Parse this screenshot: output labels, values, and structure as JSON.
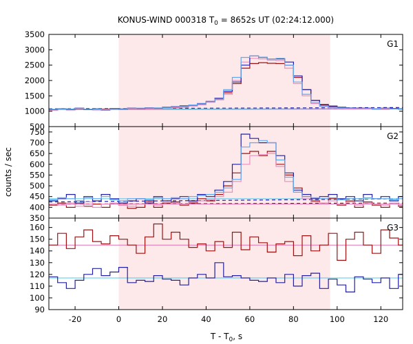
{
  "chart_data": {
    "type": "line",
    "title_main": "KONUS-WIND 000318 T",
    "title_sub": "0",
    "title_rest": " = 8652s UT (02:24:12.000)",
    "xlabel_main": "T - T",
    "xlabel_sub": "0",
    "xlabel_rest": ", s",
    "ylabel": "counts / sec",
    "xlim": [
      -32,
      130
    ],
    "xticks": [
      -20,
      0,
      20,
      40,
      60,
      80,
      100,
      120
    ],
    "shade_range": [
      0,
      96.8
    ],
    "grid": false,
    "colors": {
      "shade": "#fde8ea",
      "dark_red": "#a01010",
      "pink": "#e890c0",
      "dark_blue": "#2020a0",
      "light_blue": "#60a8f0",
      "fit_pink": "#e070b0",
      "fit_cyan": "#50c8e8"
    },
    "panels": [
      {
        "label": "G1",
        "ylim": [
          500,
          3500
        ],
        "yticks": [
          500,
          1000,
          1500,
          2000,
          2500,
          3000,
          3500
        ],
        "series": [
          {
            "color_key": "dark_red",
            "step": 4,
            "x0": -32,
            "values": [
              1040,
              1060,
              1050,
              1060,
              1060,
              1050,
              1070,
              1060,
              1060,
              1070,
              1080,
              1080,
              1090,
              1100,
              1120,
              1140,
              1180,
              1220,
              1300,
              1380,
              1600,
              1900,
              2400,
              2550,
              2580,
              2560,
              2550,
              2500,
              2100,
              1700,
              1350,
              1200,
              1150,
              1120,
              1100,
              1100,
              1090,
              1080,
              1070,
              1080,
              1070
            ]
          },
          {
            "color_key": "pink",
            "step": 4,
            "x0": -32,
            "values": [
              1030,
              1050,
              1040,
              1050,
              1050,
              1040,
              1060,
              1050,
              1050,
              1060,
              1070,
              1070,
              1080,
              1090,
              1110,
              1130,
              1170,
              1210,
              1290,
              1370,
              1550,
              2000,
              2600,
              2720,
              2700,
              2660,
              2650,
              2400,
              1900,
              1500,
              1250,
              1150,
              1110,
              1090,
              1080,
              1080,
              1070,
              1060,
              1060,
              1070,
              1060
            ]
          },
          {
            "color_key": "dark_blue",
            "step": 4,
            "x0": -32,
            "values": [
              1050,
              1080,
              1060,
              1100,
              1050,
              1080,
              1040,
              1090,
              1070,
              1100,
              1090,
              1110,
              1100,
              1130,
              1150,
              1180,
              1200,
              1250,
              1320,
              1420,
              1650,
              1950,
              2500,
              2800,
              2750,
              2700,
              2700,
              2600,
              2150,
              1700,
              1350,
              1220,
              1170,
              1130,
              1110,
              1100,
              1100,
              1080,
              1100,
              1090,
              1070
            ]
          },
          {
            "color_key": "light_blue",
            "step": 4,
            "x0": -32,
            "values": [
              1060,
              1070,
              1070,
              1090,
              1060,
              1070,
              1050,
              1080,
              1080,
              1090,
              1100,
              1100,
              1110,
              1120,
              1140,
              1170,
              1200,
              1240,
              1310,
              1400,
              1700,
              2100,
              2750,
              2800,
              2760,
              2700,
              2720,
              2500,
              1950,
              1550,
              1280,
              1170,
              1130,
              1110,
              1100,
              1090,
              1090,
              1080,
              1090,
              1080,
              1070
            ]
          }
        ],
        "fits": [
          {
            "color_key": "dark_red",
            "dashed": true,
            "y_start": 1060,
            "y_end": 1080
          },
          {
            "color_key": "dark_blue",
            "dashed": true,
            "y_start": 1080,
            "y_end": 1120
          },
          {
            "color_key": "fit_pink",
            "dashed": false,
            "y_start": 1050,
            "y_end": 1070
          },
          {
            "color_key": "fit_cyan",
            "dashed": false,
            "y_start": 1065,
            "y_end": 1090
          }
        ]
      },
      {
        "label": "G2",
        "ylim": [
          350,
          775
        ],
        "yticks": [
          350,
          400,
          450,
          500,
          550,
          600,
          650,
          700,
          750
        ],
        "series": [
          {
            "color_key": "dark_red",
            "step": 4,
            "x0": -32,
            "values": [
              410,
              420,
              400,
              430,
              405,
              415,
              400,
              420,
              410,
              395,
              400,
              430,
              400,
              420,
              425,
              410,
              420,
              440,
              430,
              460,
              500,
              560,
              650,
              660,
              640,
              660,
              600,
              550,
              490,
              450,
              430,
              420,
              440,
              410,
              430,
              400,
              425,
              410,
              400,
              420,
              405
            ]
          },
          {
            "color_key": "pink",
            "step": 4,
            "x0": -32,
            "values": [
              415,
              410,
              420,
              405,
              425,
              400,
              415,
              420,
              410,
              405,
              415,
              425,
              410,
              415,
              420,
              415,
              425,
              430,
              435,
              450,
              470,
              520,
              600,
              640,
              645,
              650,
              590,
              520,
              470,
              440,
              425,
              420,
              430,
              415,
              425,
              410,
              420,
              415,
              410,
              420,
              410
            ]
          },
          {
            "color_key": "dark_blue",
            "step": 4,
            "x0": -32,
            "values": [
              430,
              440,
              460,
              420,
              450,
              430,
              460,
              440,
              420,
              430,
              440,
              420,
              450,
              430,
              440,
              450,
              430,
              460,
              450,
              480,
              520,
              600,
              740,
              720,
              700,
              700,
              640,
              560,
              480,
              460,
              440,
              450,
              460,
              440,
              450,
              430,
              460,
              440,
              450,
              430,
              450
            ]
          },
          {
            "color_key": "light_blue",
            "step": 4,
            "x0": -32,
            "values": [
              435,
              445,
              440,
              430,
              445,
              440,
              450,
              435,
              430,
              440,
              440,
              435,
              445,
              440,
              445,
              440,
              450,
              455,
              460,
              470,
              490,
              530,
              680,
              700,
              710,
              700,
              620,
              540,
              470,
              450,
              445,
              440,
              445,
              435,
              440,
              440,
              445,
              440,
              440,
              435,
              440
            ]
          }
        ],
        "fits": [
          {
            "color_key": "dark_red",
            "dashed": true,
            "y_start": 415,
            "y_end": 420
          },
          {
            "color_key": "dark_blue",
            "dashed": true,
            "y_start": 425,
            "y_end": 440
          },
          {
            "color_key": "fit_pink",
            "dashed": false,
            "y_start": 415,
            "y_end": 415
          },
          {
            "color_key": "fit_cyan",
            "dashed": false,
            "y_start": 440,
            "y_end": 440
          }
        ]
      },
      {
        "label": "G3",
        "ylim": [
          90,
          168
        ],
        "yticks": [
          90,
          100,
          110,
          120,
          130,
          140,
          150,
          160
        ],
        "series": [
          {
            "color_key": "dark_red",
            "step": 4,
            "x0": -32,
            "values": [
              145,
              155,
              142,
              152,
              158,
              148,
              146,
              153,
              150,
              145,
              138,
              152,
              163,
              150,
              156,
              150,
              143,
              146,
              140,
              148,
              143,
              156,
              141,
              152,
              147,
              139,
              146,
              148,
              136,
              153,
              140,
              145,
              155,
              132,
              150,
              156,
              145,
              138,
              158,
              151,
              145
            ]
          },
          {
            "color_key": "dark_blue",
            "step": 4,
            "x0": -32,
            "values": [
              118,
              113,
              108,
              115,
              120,
              125,
              119,
              122,
              126,
              113,
              115,
              114,
              119,
              116,
              115,
              111,
              117,
              120,
              117,
              130,
              118,
              119,
              117,
              115,
              114,
              117,
              113,
              120,
              110,
              119,
              121,
              108,
              116,
              111,
              105,
              118,
              116,
              113,
              117,
              108,
              120
            ]
          }
        ],
        "fits": [
          {
            "color_key": "fit_pink",
            "dashed": false,
            "y_start": 145,
            "y_end": 145
          },
          {
            "color_key": "fit_cyan",
            "dashed": false,
            "y_start": 117,
            "y_end": 117
          }
        ]
      }
    ]
  }
}
